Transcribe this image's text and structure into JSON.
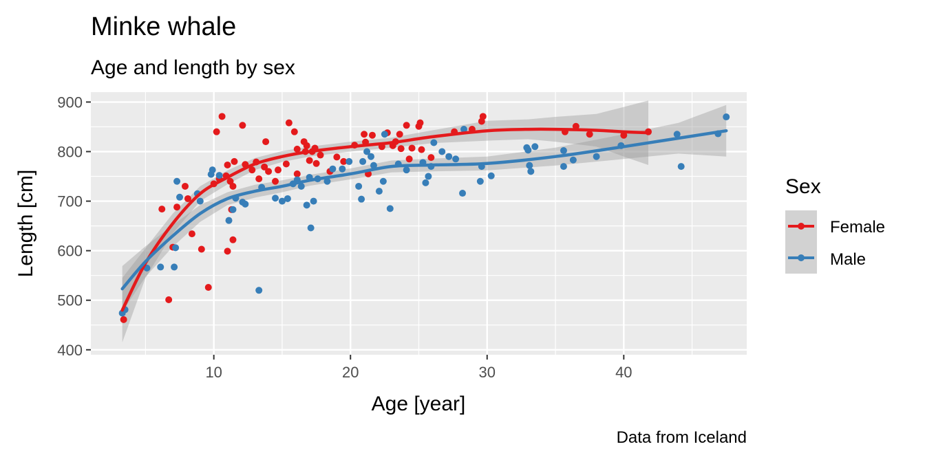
{
  "chart_data": {
    "type": "scatter",
    "title": "Minke whale",
    "subtitle": "Age and length by sex",
    "xlabel": "Age [year]",
    "ylabel": "Length [cm]",
    "caption": "Data from Iceland",
    "xlim": [
      1,
      49
    ],
    "ylim": [
      390,
      920
    ],
    "x_ticks": [
      10,
      20,
      30,
      40
    ],
    "y_ticks": [
      400,
      500,
      600,
      700,
      800,
      900
    ],
    "grid": true,
    "legend": {
      "title": "Sex",
      "position": "right",
      "entries": [
        "Female",
        "Male"
      ]
    },
    "colors": {
      "Female": "#e41a1c",
      "Male": "#377eb8",
      "panel": "#ebebeb",
      "ribbon": "#999999"
    },
    "series": [
      {
        "name": "Female",
        "points": [
          [
            3.4,
            461
          ],
          [
            6.2,
            684
          ],
          [
            6.7,
            501
          ],
          [
            7.0,
            607
          ],
          [
            7.3,
            688
          ],
          [
            7.9,
            730
          ],
          [
            8.1,
            705
          ],
          [
            8.4,
            634
          ],
          [
            9.1,
            603
          ],
          [
            9.6,
            526
          ],
          [
            10.0,
            735
          ],
          [
            10.2,
            840
          ],
          [
            10.4,
            745
          ],
          [
            10.6,
            871
          ],
          [
            10.9,
            751
          ],
          [
            11.0,
            599
          ],
          [
            11.0,
            773
          ],
          [
            11.2,
            740
          ],
          [
            11.3,
            683
          ],
          [
            11.4,
            730
          ],
          [
            11.4,
            622
          ],
          [
            11.5,
            780
          ],
          [
            12.1,
            853
          ],
          [
            12.3,
            774
          ],
          [
            12.8,
            763
          ],
          [
            13.1,
            779
          ],
          [
            13.3,
            745
          ],
          [
            13.7,
            769
          ],
          [
            13.8,
            820
          ],
          [
            14.0,
            760
          ],
          [
            14.5,
            740
          ],
          [
            14.7,
            763
          ],
          [
            15.3,
            775
          ],
          [
            15.5,
            858
          ],
          [
            15.9,
            840
          ],
          [
            16.1,
            755
          ],
          [
            16.1,
            805
          ],
          [
            16.6,
            820
          ],
          [
            16.7,
            800
          ],
          [
            16.8,
            812
          ],
          [
            17.0,
            782
          ],
          [
            17.2,
            800
          ],
          [
            17.4,
            807
          ],
          [
            17.5,
            776
          ],
          [
            17.8,
            793
          ],
          [
            18.5,
            760
          ],
          [
            19.0,
            789
          ],
          [
            19.5,
            780
          ],
          [
            20.3,
            813
          ],
          [
            21.0,
            835
          ],
          [
            21.1,
            819
          ],
          [
            21.3,
            755
          ],
          [
            21.6,
            833
          ],
          [
            22.3,
            810
          ],
          [
            22.7,
            838
          ],
          [
            23.1,
            812
          ],
          [
            23.3,
            820
          ],
          [
            23.6,
            835
          ],
          [
            23.7,
            806
          ],
          [
            24.1,
            853
          ],
          [
            24.3,
            785
          ],
          [
            24.5,
            807
          ],
          [
            25.0,
            851
          ],
          [
            25.1,
            858
          ],
          [
            25.2,
            804
          ],
          [
            25.9,
            788
          ],
          [
            27.6,
            840
          ],
          [
            28.9,
            845
          ],
          [
            29.6,
            861
          ],
          [
            29.7,
            871
          ],
          [
            35.7,
            840
          ],
          [
            36.5,
            851
          ],
          [
            37.5,
            835
          ],
          [
            40.0,
            833
          ],
          [
            41.8,
            840
          ]
        ]
      },
      {
        "name": "Male",
        "points": [
          [
            3.3,
            474
          ],
          [
            3.5,
            481
          ],
          [
            5.1,
            565
          ],
          [
            6.1,
            567
          ],
          [
            7.1,
            567
          ],
          [
            7.2,
            606
          ],
          [
            7.3,
            740
          ],
          [
            7.5,
            708
          ],
          [
            8.8,
            715
          ],
          [
            9.0,
            700
          ],
          [
            9.8,
            754
          ],
          [
            9.9,
            763
          ],
          [
            10.4,
            752
          ],
          [
            11.1,
            661
          ],
          [
            11.4,
            683
          ],
          [
            11.6,
            706
          ],
          [
            12.1,
            698
          ],
          [
            12.3,
            694
          ],
          [
            13.3,
            520
          ],
          [
            13.5,
            728
          ],
          [
            14.5,
            706
          ],
          [
            15.0,
            700
          ],
          [
            15.4,
            705
          ],
          [
            15.8,
            735
          ],
          [
            16.1,
            743
          ],
          [
            16.4,
            730
          ],
          [
            16.8,
            692
          ],
          [
            17.0,
            748
          ],
          [
            17.1,
            646
          ],
          [
            17.3,
            700
          ],
          [
            17.6,
            745
          ],
          [
            18.3,
            740
          ],
          [
            18.7,
            765
          ],
          [
            19.4,
            765
          ],
          [
            19.9,
            780
          ],
          [
            20.6,
            730
          ],
          [
            20.8,
            704
          ],
          [
            20.9,
            780
          ],
          [
            21.2,
            800
          ],
          [
            21.5,
            790
          ],
          [
            21.7,
            772
          ],
          [
            22.1,
            720
          ],
          [
            22.4,
            740
          ],
          [
            22.5,
            835
          ],
          [
            22.9,
            685
          ],
          [
            23.5,
            775
          ],
          [
            24.1,
            763
          ],
          [
            25.3,
            778
          ],
          [
            25.5,
            737
          ],
          [
            25.7,
            750
          ],
          [
            25.9,
            770
          ],
          [
            26.1,
            818
          ],
          [
            26.7,
            800
          ],
          [
            27.2,
            790
          ],
          [
            27.7,
            785
          ],
          [
            28.2,
            716
          ],
          [
            28.3,
            845
          ],
          [
            29.5,
            740
          ],
          [
            29.6,
            770
          ],
          [
            30.3,
            751
          ],
          [
            32.9,
            808
          ],
          [
            33.0,
            803
          ],
          [
            33.1,
            772
          ],
          [
            33.2,
            760
          ],
          [
            33.5,
            810
          ],
          [
            35.6,
            802
          ],
          [
            35.6,
            770
          ],
          [
            36.3,
            783
          ],
          [
            38.0,
            790
          ],
          [
            39.8,
            812
          ],
          [
            43.9,
            835
          ],
          [
            44.2,
            770
          ],
          [
            46.9,
            836
          ],
          [
            47.5,
            870
          ]
        ]
      }
    ],
    "smooth": [
      {
        "name": "Female",
        "x": [
          3.3,
          5,
          7,
          9,
          11,
          13,
          15,
          17,
          20,
          23,
          26,
          30,
          33,
          35,
          38,
          40,
          41.8
        ],
        "y": [
          480,
          575,
          655,
          715,
          748,
          775,
          790,
          800,
          810,
          818,
          830,
          842,
          845,
          845,
          843,
          840,
          838
        ],
        "ymin": [
          415,
          545,
          635,
          700,
          734,
          763,
          779,
          790,
          800,
          808,
          817,
          822,
          825,
          820,
          810,
          790,
          773
        ],
        "ymax": [
          545,
          605,
          675,
          730,
          762,
          787,
          801,
          810,
          820,
          828,
          843,
          862,
          865,
          870,
          876,
          890,
          903
        ]
      },
      {
        "name": "Male",
        "x": [
          3.3,
          5,
          7,
          9,
          11,
          13,
          15,
          17,
          20,
          23,
          26,
          30,
          35,
          40,
          44,
          47.5
        ],
        "y": [
          523,
          578,
          630,
          675,
          705,
          720,
          730,
          742,
          755,
          770,
          773,
          776,
          790,
          810,
          827,
          842
        ],
        "ymin": [
          477,
          547,
          608,
          658,
          692,
          707,
          718,
          731,
          744,
          758,
          760,
          762,
          772,
          785,
          796,
          790
        ],
        "ymax": [
          569,
          609,
          652,
          692,
          718,
          733,
          742,
          753,
          766,
          782,
          786,
          790,
          808,
          835,
          858,
          894
        ]
      }
    ]
  }
}
